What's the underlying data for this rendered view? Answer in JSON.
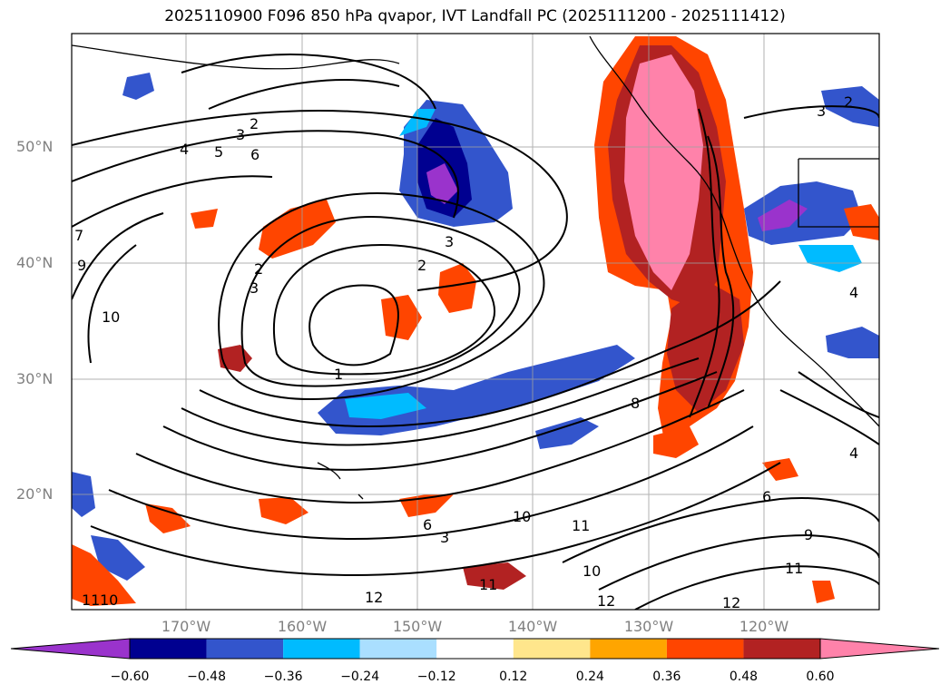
{
  "title": "2025110900 F096 850 hPa qvapor, IVT Landfall PC (2025111200 - 2025111412)",
  "lat_labels": [
    "50°N",
    "40°N",
    "30°N",
    "20°N"
  ],
  "lon_labels": [
    "170°W",
    "160°W",
    "150°W",
    "140°W",
    "130°W",
    "120°W"
  ],
  "colorbar": {
    "ticks": [
      "−0.60",
      "−0.48",
      "−0.36",
      "−0.24",
      "−0.12",
      "0.12",
      "0.24",
      "0.36",
      "0.48",
      "0.60"
    ],
    "colors": [
      "#9a33cc",
      "#000090",
      "#3355cc",
      "#00bbff",
      "#aadfff",
      "#ffffff",
      "#ffe68c",
      "#ffa500",
      "#ff4500",
      "#b22222",
      "#ff82aa"
    ]
  },
  "contour_labels": [
    "2",
    "3",
    "4",
    "5",
    "6",
    "7",
    "9",
    "10",
    "3",
    "2",
    "1",
    "3",
    "2",
    "3",
    "8",
    "6",
    "11",
    "10",
    "12",
    "12",
    "11",
    "10",
    "6",
    "9",
    "11",
    "12",
    "4",
    "4",
    "3",
    "2",
    "11",
    "10"
  ]
}
